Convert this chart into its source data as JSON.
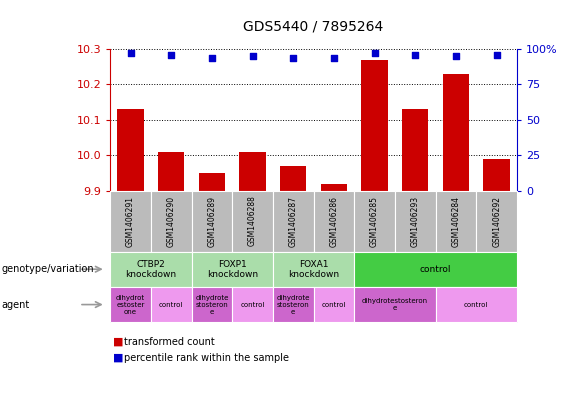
{
  "title": "GDS5440 / 7895264",
  "samples": [
    "GSM1406291",
    "GSM1406290",
    "GSM1406289",
    "GSM1406288",
    "GSM1406287",
    "GSM1406286",
    "GSM1406285",
    "GSM1406293",
    "GSM1406284",
    "GSM1406292"
  ],
  "transformed_counts": [
    10.13,
    10.01,
    9.95,
    10.01,
    9.97,
    9.92,
    10.27,
    10.13,
    10.23,
    9.99
  ],
  "percentile_ranks": [
    97,
    96,
    94,
    95,
    94,
    94,
    97,
    96,
    95,
    96
  ],
  "ylim_left": [
    9.9,
    10.3
  ],
  "ylim_right": [
    0,
    100
  ],
  "yticks_left": [
    9.9,
    10.0,
    10.1,
    10.2,
    10.3
  ],
  "yticks_right": [
    0,
    25,
    50,
    75,
    100
  ],
  "bar_color": "#cc0000",
  "dot_color": "#0000cc",
  "grid_color": "#000000",
  "genotype_groups": [
    {
      "label": "CTBP2\nknockdown",
      "start": 0,
      "end": 2,
      "color": "#aaddaa"
    },
    {
      "label": "FOXP1\nknockdown",
      "start": 2,
      "end": 4,
      "color": "#aaddaa"
    },
    {
      "label": "FOXA1\nknockdown",
      "start": 4,
      "end": 6,
      "color": "#aaddaa"
    },
    {
      "label": "control",
      "start": 6,
      "end": 10,
      "color": "#44cc44"
    }
  ],
  "agent_groups": [
    {
      "label": "dihydrot\nestoster\none",
      "start": 0,
      "end": 1,
      "color": "#cc66cc"
    },
    {
      "label": "control",
      "start": 1,
      "end": 2,
      "color": "#ee99ee"
    },
    {
      "label": "dihydrote\nstosteron\ne",
      "start": 2,
      "end": 3,
      "color": "#cc66cc"
    },
    {
      "label": "control",
      "start": 3,
      "end": 4,
      "color": "#ee99ee"
    },
    {
      "label": "dihydrote\nstosteron\ne",
      "start": 4,
      "end": 5,
      "color": "#cc66cc"
    },
    {
      "label": "control",
      "start": 5,
      "end": 6,
      "color": "#ee99ee"
    },
    {
      "label": "dihydrotestosteron\ne",
      "start": 6,
      "end": 8,
      "color": "#cc66cc"
    },
    {
      "label": "control",
      "start": 8,
      "end": 10,
      "color": "#ee99ee"
    }
  ],
  "left_label_color": "#cc0000",
  "right_label_color": "#0000cc",
  "gsm_bg_color": "#bbbbbb",
  "gsm_sep_color": "#ffffff"
}
